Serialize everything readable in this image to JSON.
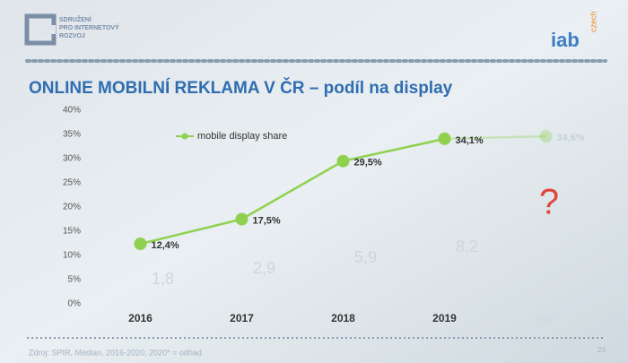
{
  "header": {
    "org_name": [
      "SDRUŽENÍ",
      "PRO INTERNETOVÝ",
      "ROZVOJ"
    ],
    "iab": "iab",
    "iab_sub": "czech"
  },
  "chart_data": {
    "type": "line",
    "title": "ONLINE MOBILNÍ REKLAMA V ČR – podíl na display",
    "categories": [
      "2016",
      "2017",
      "2018",
      "2019",
      "2020*"
    ],
    "series": [
      {
        "name": "mobile display share",
        "color": "#8fd14f",
        "values": [
          12.4,
          17.5,
          29.5,
          34.1,
          34.6
        ],
        "value_labels": [
          "12,4%",
          "17,5%",
          "29,5%",
          "34,1%",
          "34,6%"
        ]
      }
    ],
    "ylim": [
      0,
      40
    ],
    "yticks": [
      {
        "value": 0,
        "label": "0%"
      },
      {
        "value": 5,
        "label": "5%"
      },
      {
        "value": 10,
        "label": "10%"
      },
      {
        "value": 15,
        "label": "15%"
      },
      {
        "value": 20,
        "label": "20%"
      },
      {
        "value": 25,
        "label": "25%"
      },
      {
        "value": 30,
        "label": "30%"
      },
      {
        "value": 35,
        "label": "35%"
      },
      {
        "value": 40,
        "label": "40%"
      }
    ],
    "ghost_labels": [
      "1,8",
      "2,9",
      "5,9",
      "8,2"
    ],
    "annotation": "?"
  },
  "footer": {
    "source": "Zdroj: SPIR, Median, 2016-2020, 2020* = odhad",
    "page": "23"
  }
}
